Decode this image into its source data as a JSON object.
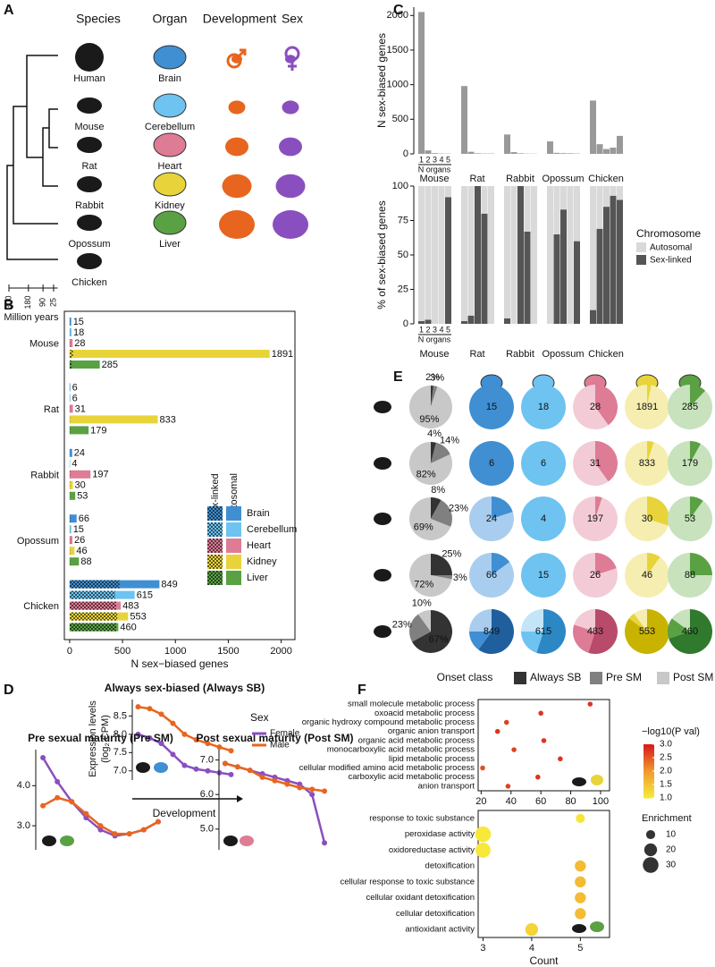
{
  "panel_labels": [
    "A",
    "B",
    "C",
    "D",
    "E",
    "F"
  ],
  "panel_a": {
    "headers": [
      "Species",
      "Organ",
      "Development",
      "Sex"
    ],
    "species": [
      "Human",
      "Mouse",
      "Rat",
      "Rabbit",
      "Opossum",
      "Chicken"
    ],
    "organs": [
      "Brain",
      "Cerebellum",
      "Heart",
      "Kidney",
      "Liver"
    ],
    "time_axis": {
      "label": "Million years",
      "xlim": [
        300,
        0
      ],
      "xticks": [
        300,
        180,
        90,
        25
      ]
    }
  },
  "chart_data": [
    {
      "type": "hbar_grouped",
      "xlabel": "N sex−biased genes",
      "categories": [
        "Mouse",
        "Rat",
        "Rabbit",
        "Opossum",
        "Chicken"
      ],
      "series": [
        {
          "name": "Brain",
          "color": "#3f8fd2",
          "values": [
            15,
            6,
            24,
            66,
            849
          ],
          "sex_linked": [
            4,
            2,
            2,
            6,
            470
          ]
        },
        {
          "name": "Cerebellum",
          "color": "#6ec3f0",
          "values": [
            18,
            6,
            4,
            15,
            615
          ],
          "sex_linked": [
            4,
            2,
            1,
            3,
            430
          ]
        },
        {
          "name": "Heart",
          "color": "#de7b95",
          "values": [
            28,
            31,
            197,
            26,
            483
          ],
          "sex_linked": [
            5,
            3,
            5,
            5,
            440
          ]
        },
        {
          "name": "Kidney",
          "color": "#e8d43a",
          "values": [
            1891,
            833,
            30,
            46,
            553
          ],
          "sex_linked": [
            30,
            5,
            5,
            5,
            450
          ]
        },
        {
          "name": "Liver",
          "color": "#5aa144",
          "values": [
            285,
            179,
            53,
            88,
            460
          ],
          "sex_linked": [
            20,
            5,
            3,
            5,
            440
          ]
        }
      ],
      "xlim": [
        -50,
        2130
      ],
      "xticks": [
        0,
        500,
        1000,
        1500,
        2000
      ],
      "legend_headers": [
        "Sex-linked",
        "Autosomal"
      ]
    },
    {
      "type": "grouped_bar",
      "ylabel": "N sex-biased genes",
      "categories": [
        "Mouse",
        "Rat",
        "Rabbit",
        "Opossum",
        "Chicken"
      ],
      "subcategories": [
        "1",
        "2",
        "3",
        "4",
        "5"
      ],
      "subcategory_label": "N organs",
      "values": [
        [
          2050,
          50,
          10,
          5,
          3
        ],
        [
          980,
          30,
          8,
          5,
          5
        ],
        [
          280,
          25,
          8,
          4,
          3
        ],
        [
          180,
          15,
          10,
          8,
          5
        ],
        [
          770,
          140,
          70,
          90,
          260
        ]
      ],
      "color": "#999999",
      "ylim": [
        0,
        2120
      ],
      "yticks": [
        0,
        500,
        1000,
        1500,
        2000
      ]
    },
    {
      "type": "stacked_bar",
      "ylabel": "% of sex-biased genes",
      "categories": [
        "Mouse",
        "Rat",
        "Rabbit",
        "Opossum",
        "Chicken"
      ],
      "subcategories": [
        "1",
        "2",
        "3",
        "4",
        "5"
      ],
      "subcategory_label": "N organs",
      "legend_title": "Chromosome",
      "series": [
        {
          "name": "Autosomal",
          "color": "#d9d9d9",
          "values": [
            [
              98,
              97,
              100,
              100,
              8
            ],
            [
              98,
              94,
              0,
              20,
              100
            ],
            [
              96,
              100,
              0,
              33,
              100
            ],
            [
              100,
              35,
              17,
              100,
              40
            ],
            [
              90,
              31,
              15,
              7,
              10
            ]
          ]
        },
        {
          "name": "Sex-linked",
          "color": "#555555",
          "values": [
            [
              2,
              3,
              0,
              0,
              92
            ],
            [
              2,
              6,
              100,
              80,
              0
            ],
            [
              4,
              0,
              100,
              67,
              0
            ],
            [
              0,
              65,
              83,
              0,
              60
            ],
            [
              10,
              69,
              85,
              93,
              90
            ]
          ]
        }
      ],
      "ylim": [
        0,
        100
      ],
      "yticks": [
        0,
        25,
        50,
        75,
        100
      ]
    },
    {
      "type": "pie_grid",
      "legend_title": "Onset class",
      "classes": [
        "Always SB",
        "Pre SM",
        "Post SM"
      ],
      "class_colors": [
        "#333333",
        "#808080",
        "#c8c8c8"
      ],
      "organ_colors": [
        [
          "#1f5f9e",
          "#3f8fd2",
          "#a9cdee"
        ],
        [
          "#2c88c4",
          "#6ec3f0",
          "#c2e5f8"
        ],
        [
          "#b84a6a",
          "#de7b95",
          "#f3cbd6"
        ],
        [
          "#c8b300",
          "#e8d43a",
          "#f6eeb0"
        ],
        [
          "#2f7a2c",
          "#5aa144",
          "#c7e2bd"
        ]
      ],
      "rows": [
        {
          "onset": {
            "values": [
              2,
              3,
              95
            ],
            "value_labels": [
              "2%",
              "3%",
              "95%"
            ]
          },
          "organs": [
            {
              "total": 15,
              "values": [
                0,
                100,
                0
              ]
            },
            {
              "total": 18,
              "values": [
                0,
                100,
                0
              ]
            },
            {
              "total": 28,
              "values": [
                0,
                40,
                60
              ]
            },
            {
              "total": 1891,
              "values": [
                0,
                3,
                97
              ]
            },
            {
              "total": 285,
              "values": [
                0,
                12,
                88
              ]
            }
          ]
        },
        {
          "onset": {
            "values": [
              4,
              14,
              82
            ],
            "value_labels": [
              "4%",
              "14%",
              "82%"
            ]
          },
          "organs": [
            {
              "total": 6,
              "values": [
                0,
                100,
                0
              ]
            },
            {
              "total": 6,
              "values": [
                0,
                100,
                0
              ]
            },
            {
              "total": 31,
              "values": [
                0,
                40,
                60
              ]
            },
            {
              "total": 833,
              "values": [
                0,
                5,
                95
              ]
            },
            {
              "total": 179,
              "values": [
                0,
                8,
                92
              ]
            }
          ]
        },
        {
          "onset": {
            "values": [
              8,
              23,
              69
            ],
            "value_labels": [
              "8%",
              "23%",
              "69%"
            ]
          },
          "organs": [
            {
              "total": 24,
              "values": [
                0,
                20,
                80
              ]
            },
            {
              "total": 4,
              "values": [
                0,
                100,
                0
              ]
            },
            {
              "total": 197,
              "values": [
                0,
                5,
                95
              ]
            },
            {
              "total": 30,
              "values": [
                0,
                30,
                70
              ]
            },
            {
              "total": 53,
              "values": [
                0,
                10,
                90
              ]
            }
          ]
        },
        {
          "onset": {
            "values": [
              25,
              3,
              72
            ],
            "value_labels": [
              "25%",
              "3%",
              "72%"
            ]
          },
          "organs": [
            {
              "total": 66,
              "values": [
                0,
                15,
                85
              ]
            },
            {
              "total": 15,
              "values": [
                0,
                100,
                0
              ]
            },
            {
              "total": 26,
              "values": [
                0,
                20,
                80
              ]
            },
            {
              "total": 46,
              "values": [
                0,
                10,
                90
              ]
            },
            {
              "total": 88,
              "values": [
                0,
                25,
                75
              ]
            }
          ]
        },
        {
          "onset": {
            "values": [
              67,
              23,
              10
            ],
            "value_labels": [
              "67%",
              "23%",
              "10%"
            ]
          },
          "organs": [
            {
              "total": 849,
              "values": [
                60,
                15,
                25
              ]
            },
            {
              "total": 615,
              "values": [
                55,
                20,
                25
              ]
            },
            {
              "total": 483,
              "values": [
                55,
                25,
                20
              ]
            },
            {
              "total": 553,
              "values": [
                85,
                5,
                10
              ]
            },
            {
              "total": 460,
              "values": [
                70,
                15,
                15
              ]
            }
          ]
        }
      ]
    },
    {
      "type": "line",
      "title": "Always sex-biased (Always SB)",
      "ylabel": [
        "Expression levels",
        "(log₂ CPM)"
      ],
      "xlabel": "Development",
      "legend_title": "Sex",
      "x": [
        1,
        2,
        3,
        4,
        5,
        6,
        7,
        8,
        9
      ],
      "series": [
        {
          "name": "Female",
          "color": "#8a4fbf",
          "values": [
            8.0,
            7.9,
            7.75,
            7.45,
            7.15,
            7.05,
            7.0,
            6.95,
            6.9
          ]
        },
        {
          "name": "Male",
          "color": "#e8651f",
          "values": [
            8.75,
            8.7,
            8.55,
            8.3,
            8.0,
            7.85,
            7.75,
            7.65,
            7.55
          ]
        }
      ],
      "xlim": [
        0.5,
        9.5
      ],
      "ylim": [
        6.75,
        8.95
      ],
      "yticks": [
        {
          "value": 7,
          "label": "7.0"
        },
        7.5,
        {
          "value": 8,
          "label": "8.0"
        },
        8.5
      ]
    },
    {
      "type": "line",
      "title": "Pre sexual maturity (Pre SM)",
      "x": [
        1,
        2,
        3,
        4,
        5,
        6,
        7,
        8,
        9
      ],
      "series": [
        {
          "name": "Female",
          "color": "#8a4fbf",
          "values": [
            4.7,
            4.1,
            3.6,
            3.2,
            2.9,
            2.75,
            2.8,
            2.9,
            3.1
          ]
        },
        {
          "name": "Male",
          "color": "#e8651f",
          "values": [
            3.5,
            3.7,
            3.6,
            3.3,
            3.0,
            2.8,
            2.8,
            2.9,
            3.1
          ]
        }
      ],
      "xlim": [
        0.5,
        9.5
      ],
      "ylim": [
        2.4,
        4.9
      ],
      "yticks": [
        {
          "value": 3,
          "label": "3.0"
        },
        {
          "value": 4,
          "label": "4.0"
        }
      ]
    },
    {
      "type": "line",
      "title": "Post sexual maturity (Post SM)",
      "x": [
        1,
        2,
        3,
        4,
        5,
        6,
        7,
        8,
        9
      ],
      "series": [
        {
          "name": "Female",
          "color": "#8a4fbf",
          "values": [
            6.9,
            6.8,
            6.7,
            6.6,
            6.5,
            6.4,
            6.3,
            6.0,
            4.6
          ]
        },
        {
          "name": "Male",
          "color": "#e8651f",
          "values": [
            6.9,
            6.8,
            6.7,
            6.5,
            6.4,
            6.3,
            6.2,
            6.15,
            6.1
          ]
        }
      ],
      "xlim": [
        0.5,
        9.5
      ],
      "ylim": [
        4.4,
        7.3
      ],
      "yticks": [
        {
          "value": 5,
          "label": "5.0"
        },
        {
          "value": 6,
          "label": "6.0"
        },
        {
          "value": 7,
          "label": "7.0"
        }
      ]
    },
    {
      "type": "dot",
      "categories": [
        "small molecule metabolic process",
        "oxoacid metabolic process",
        "organic hydroxy compound metabolic process",
        "organic anion transport",
        "organic acid metabolic process",
        "monocarboxylic acid metabolic process",
        "lipid metabolic process",
        "cellular modified amino acid metabolic process",
        "carboxylic acid metabolic process",
        "anion transport"
      ],
      "values": [
        93,
        60,
        37,
        31,
        62,
        42,
        73,
        21,
        58,
        38
      ],
      "pval": [
        2.8,
        2.8,
        2.7,
        2.8,
        2.8,
        2.7,
        2.8,
        2.6,
        2.8,
        2.7
      ],
      "enrichment": [
        3,
        3,
        3,
        3,
        3,
        3,
        3,
        3,
        3,
        3
      ],
      "xlim": [
        18,
        106
      ],
      "xticks": [
        20,
        40,
        60,
        80,
        100
      ],
      "color_title": "−log10(P val)",
      "clim": [
        1,
        3
      ],
      "color_ticks": [
        {
          "value": 1,
          "label": "1.0"
        },
        1.5,
        {
          "value": 2,
          "label": "2.0"
        },
        2.5,
        {
          "value": 3,
          "label": "3.0"
        }
      ],
      "size_title": "Enrichment",
      "size_ticks": [
        10,
        20,
        30
      ]
    },
    {
      "type": "dot",
      "xlabel": "Count",
      "categories": [
        "response to toxic substance",
        "peroxidase activity",
        "oxidoreductase activity",
        "detoxification",
        "cellular response to toxic substance",
        "cellular oxidant detoxification",
        "cellular detoxification",
        "antioxidant activity"
      ],
      "values": [
        5,
        3,
        3,
        5,
        5,
        5,
        5,
        4
      ],
      "pval": [
        1.1,
        1.05,
        1.05,
        1.6,
        1.6,
        1.6,
        1.6,
        1.3
      ],
      "enrichment": [
        10,
        30,
        28,
        15,
        15,
        15,
        15,
        20
      ],
      "xlim": [
        2.9,
        5.6
      ],
      "xticks": [
        3,
        4,
        5
      ]
    }
  ]
}
